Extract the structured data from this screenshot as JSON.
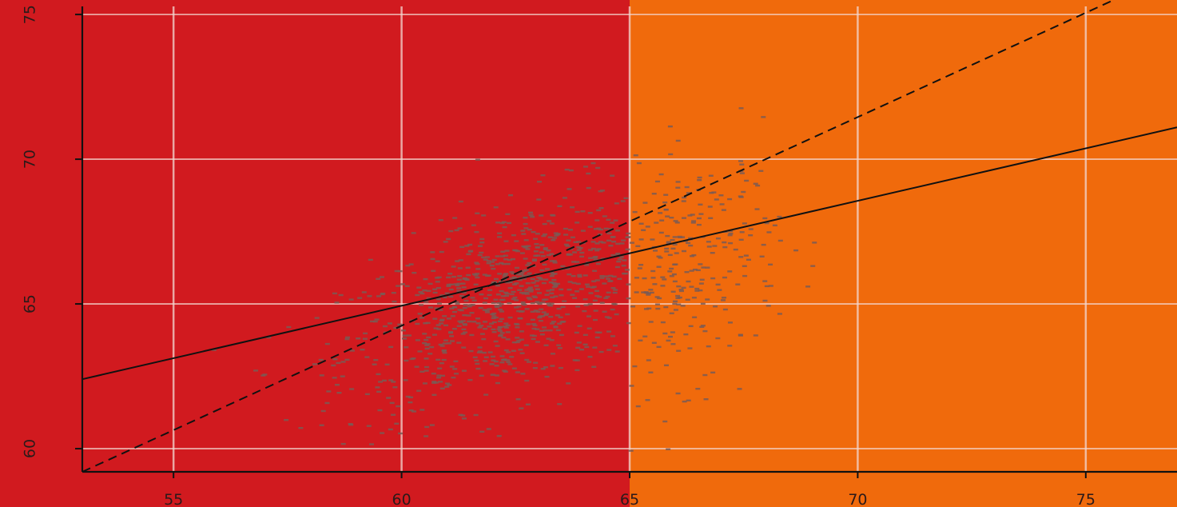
{
  "chart_data": {
    "type": "scatter",
    "title": "",
    "xlabel": "",
    "ylabel": "",
    "xlim": [
      53,
      77
    ],
    "ylim": [
      59.2,
      75.5
    ],
    "x_ticks": [
      "55",
      "60",
      "65",
      "70",
      "75"
    ],
    "y_ticks": [
      "60",
      "65",
      "70",
      "75"
    ],
    "x_tick_values": [
      55,
      60,
      65,
      70,
      75
    ],
    "y_tick_values": [
      60,
      65,
      70,
      75
    ],
    "grid": true,
    "background_regions": [
      {
        "from_x": 53,
        "to_x": 65,
        "color": "#d11a1f"
      },
      {
        "from_x": 65,
        "to_x": 77,
        "color": "#f06a0c"
      }
    ],
    "point_color": "#7a5a55",
    "lines": [
      {
        "style": "solid",
        "points": [
          [
            53,
            62.4
          ],
          [
            77,
            71.1
          ]
        ]
      },
      {
        "style": "dashed",
        "points": [
          [
            53,
            59.2
          ],
          [
            77,
            76.5
          ]
        ]
      }
    ],
    "scatter_clusters": [
      {
        "cx": 62.5,
        "cy": 65.2,
        "sx": 1.9,
        "sy": 1.6,
        "n": 900,
        "xmax": 65.0
      },
      {
        "cx": 66.3,
        "cy": 66.2,
        "sx": 1.0,
        "sy": 1.9,
        "n": 260,
        "xmin": 65.0
      }
    ]
  }
}
